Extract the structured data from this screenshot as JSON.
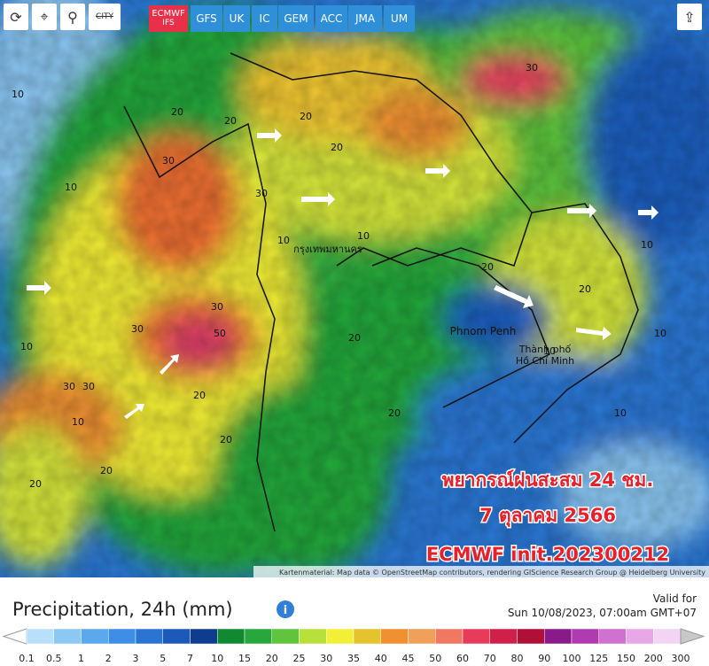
{
  "toolbar": {
    "city": "CITY"
  },
  "tabs": [
    {
      "line1": "ECMWF",
      "line2": "IFS"
    },
    {
      "line1": "GFS"
    },
    {
      "line1": "UK"
    },
    {
      "line1": "IC"
    },
    {
      "line1": "GEM"
    },
    {
      "line1": "ACC"
    },
    {
      "line1": "JMA"
    },
    {
      "line1": "UM"
    }
  ],
  "map": {
    "places": [
      "กรุงเทพมหานคร",
      "Phnom Penh",
      "Thành phố",
      "Hồ Chí Minh"
    ],
    "contour_labels": [
      "10",
      "20",
      "30",
      "20",
      "30",
      "10",
      "10",
      "20",
      "30",
      "50",
      "30",
      "30",
      "20",
      "10",
      "20",
      "10",
      "20",
      "20",
      "30",
      "20",
      "10",
      "20",
      "10",
      "20",
      "10",
      "10",
      "20",
      "30",
      "10",
      "20"
    ],
    "overlay": {
      "line1": "พยากรณ์ฝนสะสม 24 ชม.",
      "line2": "7 ตุลาคม 2566",
      "line3": "ECMWF init.202300212"
    },
    "attribution": "Kartenmaterial: Map data © OpenStreetMap contributors, rendering GIScience Research Group @ Heidelberg University"
  },
  "legend": {
    "title": "Precipitation, 24h (mm)",
    "valid_label": "Valid for",
    "valid_time": "Sun 10/08/2023, 07:00am GMT+07",
    "scale": [
      "0.1",
      "0.5",
      "1",
      "2",
      "3",
      "5",
      "7",
      "10",
      "15",
      "20",
      "25",
      "30",
      "35",
      "40",
      "45",
      "50",
      "60",
      "70",
      "80",
      "90",
      "100",
      "125",
      "150",
      "200",
      "300"
    ]
  }
}
